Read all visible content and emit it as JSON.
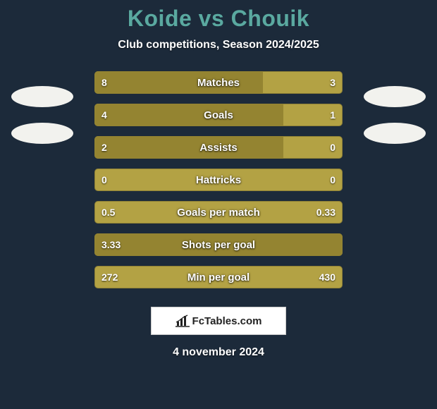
{
  "title": "Koide vs Chouik",
  "subtitle": "Club competitions, Season 2024/2025",
  "date": "4 november 2024",
  "logo_text": "FcTables.com",
  "colors": {
    "background": "#1c2a3a",
    "title_color": "#5aa9a0",
    "text_color": "#ffffff",
    "bar_track": "#b3a244",
    "bar_fill": "#948431",
    "oval_color": "#f2f2ee",
    "logo_bg": "#ffffff",
    "logo_border": "#c9c9c9",
    "logo_text_color": "#222222"
  },
  "fontsize": {
    "title": 32,
    "subtitle": 16,
    "bar_label": 15,
    "bar_value": 14,
    "date": 16,
    "logo_text": 15
  },
  "stats": [
    {
      "label": "Matches",
      "left_val": "8",
      "right_val": "3",
      "left_pct": 68,
      "right_pct": 0
    },
    {
      "label": "Goals",
      "left_val": "4",
      "right_val": "1",
      "left_pct": 76,
      "right_pct": 0
    },
    {
      "label": "Assists",
      "left_val": "2",
      "right_val": "0",
      "left_pct": 76,
      "right_pct": 0
    },
    {
      "label": "Hattricks",
      "left_val": "0",
      "right_val": "0",
      "left_pct": 0,
      "right_pct": 0
    },
    {
      "label": "Goals per match",
      "left_val": "0.5",
      "right_val": "0.33",
      "left_pct": 0,
      "right_pct": 0
    },
    {
      "label": "Shots per goal",
      "left_val": "3.33",
      "right_val": "",
      "left_pct": 100,
      "right_pct": 0
    },
    {
      "label": "Min per goal",
      "left_val": "272",
      "right_val": "430",
      "left_pct": 0,
      "right_pct": 0
    }
  ]
}
